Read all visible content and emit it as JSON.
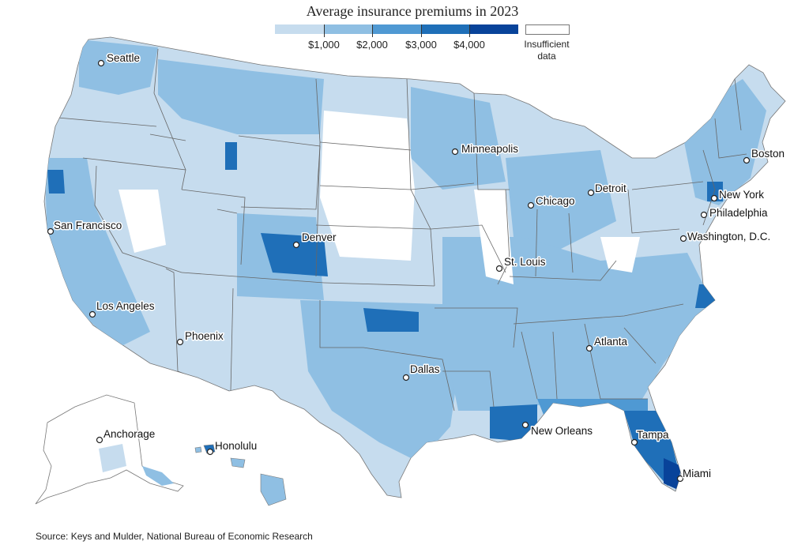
{
  "title": "Average insurance premiums in 2023",
  "legend": {
    "colors": [
      "#eef3fb",
      "#c6dcee",
      "#8fbfe3",
      "#4f99d3",
      "#1f6fb8",
      "#08439a"
    ],
    "tick_labels": [
      "$1,000",
      "$2,000",
      "$3,000",
      "$4,000"
    ],
    "insufficient_label": "Insufficient data"
  },
  "map": {
    "type": "choropleth",
    "unit": "US counties",
    "variable": "Average insurance premium",
    "year": 2023,
    "bins": [
      {
        "range": "< $1,000",
        "color": "#eef3fb"
      },
      {
        "range": "$1,000 – $2,000",
        "color": "#c6dcee"
      },
      {
        "range": "$2,000 – $3,000",
        "color": "#8fbfe3"
      },
      {
        "range": "$3,000 – $4,000",
        "color": "#4f99d3"
      },
      {
        "range": "> $4,000",
        "color": "#08439a"
      },
      {
        "range": "Insufficient data",
        "color": "#ffffff"
      }
    ]
  },
  "cities": [
    {
      "name": "Seattle"
    },
    {
      "name": "Minneapolis"
    },
    {
      "name": "Boston"
    },
    {
      "name": "Detroit"
    },
    {
      "name": "Chicago"
    },
    {
      "name": "New York"
    },
    {
      "name": "Philadelphia"
    },
    {
      "name": "San Francisco"
    },
    {
      "name": "Denver"
    },
    {
      "name": "Washington, D.C."
    },
    {
      "name": "St. Louis"
    },
    {
      "name": "Los Angeles"
    },
    {
      "name": "Phoenix"
    },
    {
      "name": "Atlanta"
    },
    {
      "name": "Dallas"
    },
    {
      "name": "New Orleans"
    },
    {
      "name": "Tampa"
    },
    {
      "name": "Miami"
    },
    {
      "name": "Anchorage"
    },
    {
      "name": "Honolulu"
    }
  ],
  "source": "Source: Keys and Mulder, National Bureau of Economic Research"
}
